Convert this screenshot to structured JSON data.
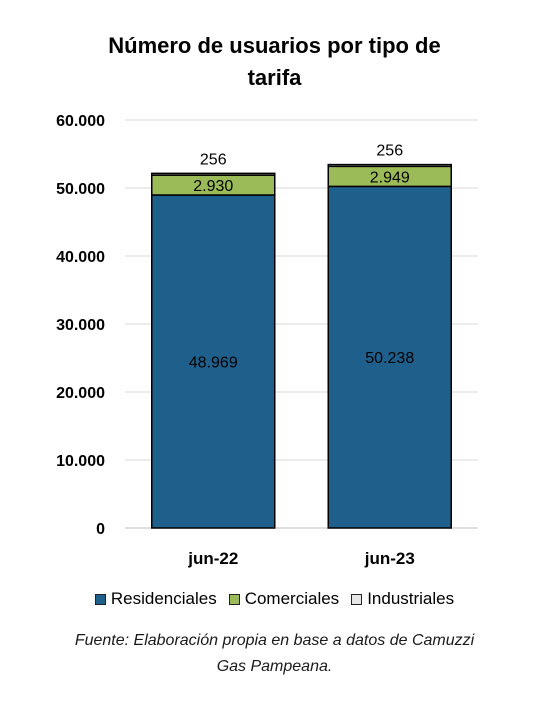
{
  "chart_data": {
    "type": "bar",
    "stacked": true,
    "title_lines": [
      "Número de usuarios por tipo de",
      "tarifa"
    ],
    "categories": [
      "jun-22",
      "jun-23"
    ],
    "series": [
      {
        "name": "Residenciales",
        "values": [
          48969,
          50238
        ],
        "labels": [
          "48.969",
          "50.238"
        ],
        "color": "#1f5f8b"
      },
      {
        "name": "Comerciales",
        "values": [
          2930,
          2949
        ],
        "labels": [
          "2.930",
          "2.949"
        ],
        "color": "#9bbb59"
      },
      {
        "name": "Industriales",
        "values": [
          256,
          256
        ],
        "labels": [
          "256",
          "256"
        ],
        "color": "#e6e6e6"
      }
    ],
    "ylim": [
      0,
      60000
    ],
    "yticks": [
      0,
      10000,
      20000,
      30000,
      40000,
      50000,
      60000
    ],
    "ytick_labels": [
      "0",
      "10.000",
      "20.000",
      "30.000",
      "40.000",
      "50.000",
      "60.000"
    ],
    "grid": true,
    "legend_position": "bottom"
  },
  "footer": {
    "source_lines": [
      "Fuente: Elaboración propia en base a datos de Camuzzi",
      "Gas Pampeana."
    ]
  }
}
